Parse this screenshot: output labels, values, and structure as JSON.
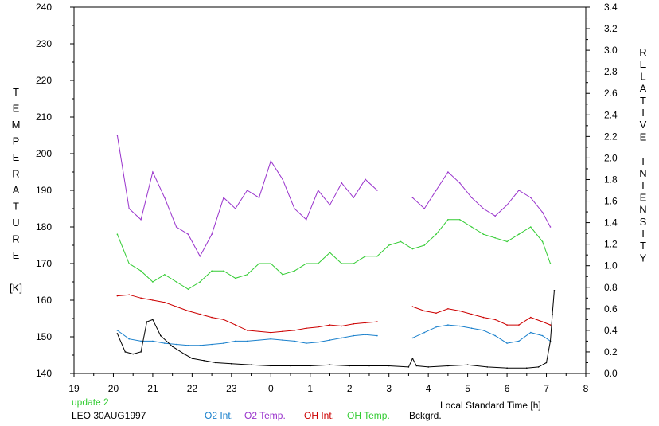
{
  "chart_data": {
    "type": "line",
    "xlabel": "Local Standard Time [h]",
    "ylabel_left": [
      "T",
      "E",
      "M",
      "P",
      "E",
      "R",
      "A",
      "T",
      "U",
      "R",
      "E",
      "",
      "[K]"
    ],
    "ylabel_right": [
      "R",
      "E",
      "L",
      "A",
      "T",
      "I",
      "V",
      "E",
      "",
      "I",
      "N",
      "T",
      "E",
      "N",
      "S",
      "I",
      "T",
      "Y"
    ],
    "xlim": [
      19,
      32
    ],
    "x_ticks": [
      {
        "v": 19,
        "label": "19"
      },
      {
        "v": 20,
        "label": "20"
      },
      {
        "v": 21,
        "label": "21"
      },
      {
        "v": 22,
        "label": "22"
      },
      {
        "v": 23,
        "label": "23"
      },
      {
        "v": 24,
        "label": "0"
      },
      {
        "v": 25,
        "label": "1"
      },
      {
        "v": 26,
        "label": "2"
      },
      {
        "v": 27,
        "label": "3"
      },
      {
        "v": 28,
        "label": "4"
      },
      {
        "v": 29,
        "label": "5"
      },
      {
        "v": 30,
        "label": "6"
      },
      {
        "v": 31,
        "label": "7"
      },
      {
        "v": 32,
        "label": "8"
      }
    ],
    "ylim_left": [
      140,
      240
    ],
    "y_ticks_left": [
      "140",
      "150",
      "160",
      "170",
      "180",
      "190",
      "200",
      "210",
      "220",
      "230",
      "240"
    ],
    "ylim_right": [
      0.0,
      3.4
    ],
    "y_ticks_right": [
      "0.0",
      "0.2",
      "0.4",
      "0.6",
      "0.8",
      "1.0",
      "1.2",
      "1.4",
      "1.6",
      "1.8",
      "2.0",
      "2.2",
      "2.4",
      "2.6",
      "2.8",
      "3.0",
      "3.2",
      "3.4"
    ],
    "series": [
      {
        "name": "O2 Temp.",
        "color": "#9933cc",
        "axis": "left",
        "x": [
          20.1,
          20.4,
          20.7,
          21.0,
          21.3,
          21.6,
          21.9,
          22.2,
          22.5,
          22.8,
          23.1,
          23.4,
          23.7,
          24.0,
          24.3,
          24.6,
          24.9,
          25.2,
          25.5,
          25.8,
          26.1,
          26.4,
          26.7,
          27.0,
          27.3,
          27.6,
          27.9,
          28.2,
          28.5,
          28.8,
          29.1,
          29.4,
          29.7,
          30.0,
          30.3,
          30.6,
          30.9,
          31.1
        ],
        "y": [
          205,
          185,
          182,
          195,
          188,
          180,
          178,
          172,
          178,
          188,
          185,
          190,
          188,
          198,
          193,
          185,
          182,
          190,
          186,
          192,
          188,
          193,
          190,
          null,
          null,
          188,
          185,
          190,
          195,
          192,
          188,
          185,
          183,
          186,
          190,
          188,
          184,
          180
        ]
      },
      {
        "name": "OH Temp.",
        "color": "#33cc33",
        "axis": "left",
        "x": [
          20.1,
          20.4,
          20.7,
          21.0,
          21.3,
          21.6,
          21.9,
          22.2,
          22.5,
          22.8,
          23.1,
          23.4,
          23.7,
          24.0,
          24.3,
          24.6,
          24.9,
          25.2,
          25.5,
          25.8,
          26.1,
          26.4,
          26.7,
          27.0,
          27.3,
          27.6,
          27.9,
          28.2,
          28.5,
          28.8,
          29.1,
          29.4,
          29.7,
          30.0,
          30.3,
          30.6,
          30.9,
          31.1
        ],
        "y": [
          178,
          170,
          168,
          165,
          167,
          165,
          163,
          165,
          168,
          168,
          166,
          167,
          170,
          170,
          167,
          168,
          170,
          170,
          173,
          170,
          170,
          172,
          172,
          175,
          176,
          174,
          175,
          178,
          182,
          182,
          180,
          178,
          177,
          176,
          178,
          180,
          176,
          170
        ]
      },
      {
        "name": "OH Int.",
        "color": "#cc0000",
        "axis": "right",
        "x": [
          20.1,
          20.4,
          20.7,
          21.0,
          21.3,
          21.6,
          21.9,
          22.2,
          22.5,
          22.8,
          23.1,
          23.4,
          23.7,
          24.0,
          24.3,
          24.6,
          24.9,
          25.2,
          25.5,
          25.8,
          26.1,
          26.4,
          26.7,
          27.0,
          27.3,
          27.6,
          27.9,
          28.2,
          28.5,
          28.8,
          29.1,
          29.4,
          29.7,
          30.0,
          30.3,
          30.6,
          30.9,
          31.1
        ],
        "y": [
          0.72,
          0.73,
          0.7,
          0.68,
          0.66,
          0.62,
          0.58,
          0.55,
          0.52,
          0.5,
          0.45,
          0.4,
          0.39,
          0.38,
          0.39,
          0.4,
          0.42,
          0.43,
          0.45,
          0.44,
          0.46,
          0.47,
          0.48,
          null,
          null,
          0.62,
          0.58,
          0.56,
          0.6,
          0.58,
          0.55,
          0.52,
          0.5,
          0.45,
          0.45,
          0.52,
          0.48,
          0.45
        ]
      },
      {
        "name": "O2 Int.",
        "color": "#1a80cc",
        "axis": "right",
        "x": [
          20.1,
          20.4,
          20.7,
          21.0,
          21.3,
          21.6,
          21.9,
          22.2,
          22.5,
          22.8,
          23.1,
          23.4,
          23.7,
          24.0,
          24.3,
          24.6,
          24.9,
          25.2,
          25.5,
          25.8,
          26.1,
          26.4,
          26.7,
          27.0,
          27.3,
          27.6,
          27.9,
          28.2,
          28.5,
          28.8,
          29.1,
          29.4,
          29.7,
          30.0,
          30.3,
          30.6,
          30.9,
          31.1
        ],
        "y": [
          0.4,
          0.32,
          0.3,
          0.3,
          0.28,
          0.27,
          0.26,
          0.26,
          0.27,
          0.28,
          0.3,
          0.3,
          0.31,
          0.32,
          0.31,
          0.3,
          0.28,
          0.29,
          0.31,
          0.33,
          0.35,
          0.36,
          0.35,
          null,
          null,
          0.33,
          0.38,
          0.43,
          0.45,
          0.44,
          0.42,
          0.4,
          0.35,
          0.28,
          0.3,
          0.38,
          0.35,
          0.3
        ]
      },
      {
        "name": "Bckgrd.",
        "color": "#000000",
        "axis": "right",
        "x": [
          20.1,
          20.3,
          20.5,
          20.7,
          20.85,
          21.0,
          21.2,
          21.5,
          21.8,
          22.0,
          22.3,
          22.6,
          23.0,
          23.5,
          24.0,
          24.5,
          25.0,
          25.5,
          26.0,
          26.5,
          27.0,
          27.5,
          27.6,
          27.7,
          28.0,
          28.5,
          29.0,
          29.5,
          30.0,
          30.5,
          30.8,
          31.0,
          31.1,
          31.15,
          31.2
        ],
        "y": [
          0.37,
          0.2,
          0.18,
          0.2,
          0.48,
          0.5,
          0.35,
          0.25,
          0.18,
          0.14,
          0.12,
          0.1,
          0.09,
          0.08,
          0.07,
          0.07,
          0.07,
          0.08,
          0.07,
          0.07,
          0.07,
          0.06,
          0.14,
          0.07,
          0.06,
          0.07,
          0.08,
          0.06,
          0.05,
          0.05,
          0.06,
          0.1,
          0.3,
          0.55,
          0.77
        ]
      }
    ]
  },
  "footer": {
    "update_label": "update 2",
    "station_label": "LEO 30AUG1997",
    "legend": [
      {
        "label": "O2 Int.",
        "color": "#1a80cc"
      },
      {
        "label": "O2 Temp.",
        "color": "#9933cc"
      },
      {
        "label": "OH Int.",
        "color": "#cc0000"
      },
      {
        "label": "OH Temp.",
        "color": "#33cc33"
      },
      {
        "label": "Bckgrd.",
        "color": "#000000"
      }
    ]
  }
}
